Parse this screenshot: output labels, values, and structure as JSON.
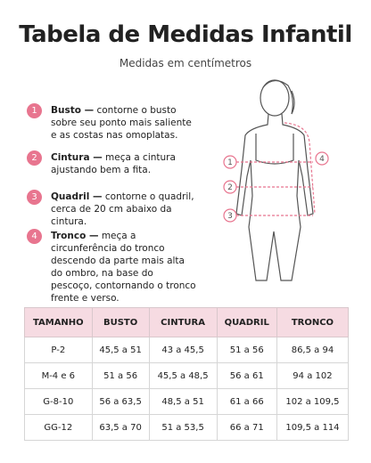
{
  "header": {
    "title": "Tabela de Medidas Infantil",
    "subtitle": "Medidas em centímetros"
  },
  "instructions": [
    {
      "number": "1",
      "term": "Busto —",
      "text": "contorne o busto sobre seu ponto mais saliente e as costas nas omoplatas."
    },
    {
      "number": "2",
      "term": "Cintura —",
      "text": "meça a cintura ajustando bem a fita."
    },
    {
      "number": "3",
      "term": "Quadril —",
      "text": "contorne o quadril, cerca de 20 cm abaixo da cintura."
    },
    {
      "number": "4",
      "term": "Tronco —",
      "text": "meça a circunferência do tronco descendo da parte mais alta do ombro, na base do pescoço, contornando o tronco frente e verso."
    }
  ],
  "table": {
    "headers": [
      "TAMANHO",
      "BUSTO",
      "CINTURA",
      "QUADRIL",
      "TRONCO"
    ],
    "rows": [
      [
        "P-2",
        "45,5 a 51",
        "43 a 45,5",
        "51 a 56",
        "86,5 a 94"
      ],
      [
        "M-4 e 6",
        "51 a 56",
        "45,5 a 48,5",
        "56 a 61",
        "94 a 102"
      ],
      [
        "G-8-10",
        "56 a 63,5",
        "48,5 a 51",
        "61 a 66",
        "102 a 109,5"
      ],
      [
        "GG-12",
        "63,5 a 70",
        "51 a 53,5",
        "66 a 71",
        "109,5 a 114"
      ]
    ]
  }
}
